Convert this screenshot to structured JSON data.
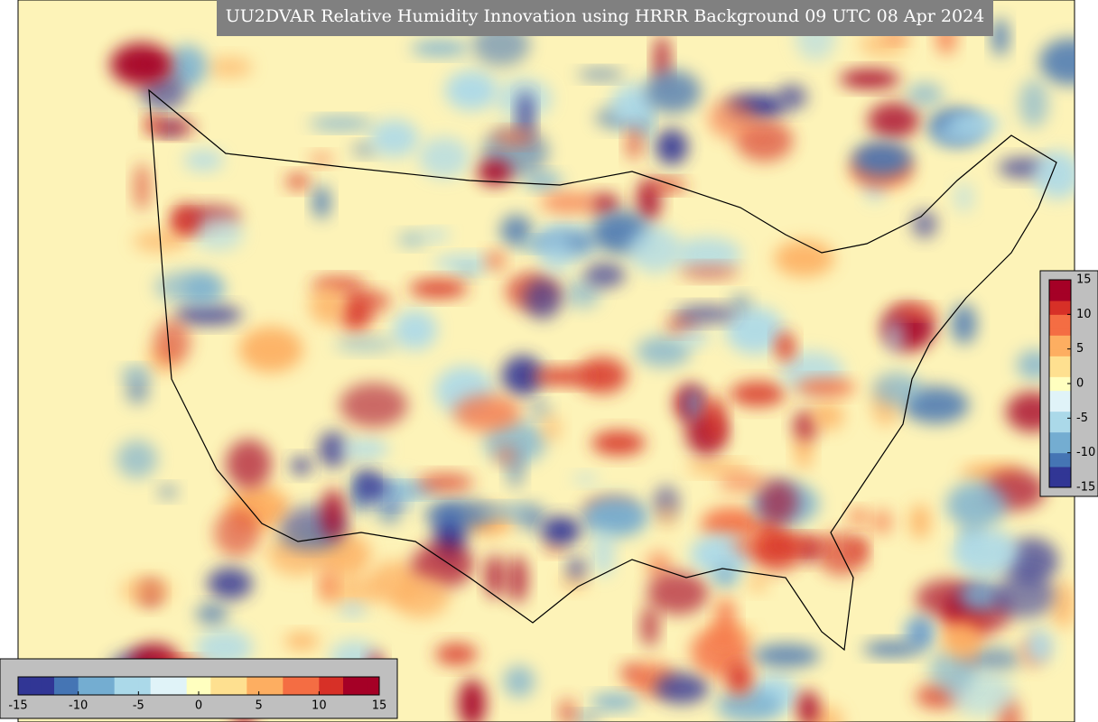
{
  "title": "UU2DVAR Relative Humidity Innovation using HRRR Background 09 UTC 08 Apr 2024",
  "colormap": [
    "#313695",
    "#4575b4",
    "#74add1",
    "#abd9e9",
    "#e0f3f8",
    "#ffffbf",
    "#fee090",
    "#fdae61",
    "#f46d43",
    "#d73027",
    "#a50026"
  ],
  "colorbars": [
    {
      "orientation": "horizontal",
      "lim": [
        -15,
        15
      ],
      "ticks": [
        -15,
        -10,
        -5,
        0,
        5,
        10,
        15
      ]
    },
    {
      "orientation": "vertical",
      "lim": [
        -15,
        15
      ],
      "ticks": [
        15,
        10,
        5,
        0,
        -5,
        -10,
        -15
      ]
    }
  ]
}
